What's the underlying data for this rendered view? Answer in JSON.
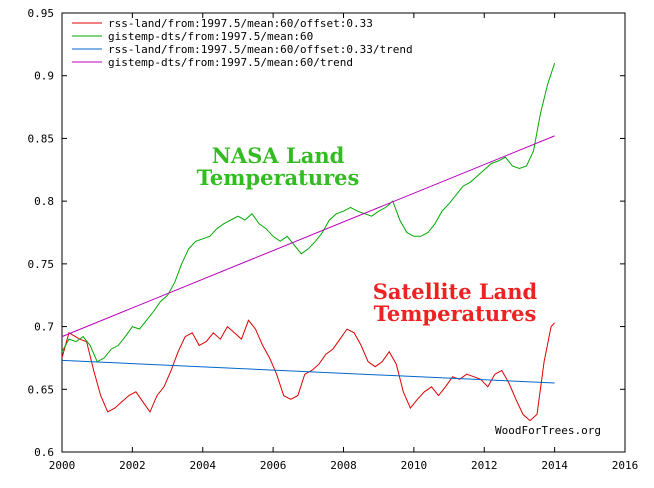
{
  "chart_data": {
    "type": "line",
    "title": "",
    "xlabel": "",
    "ylabel": "",
    "xlim": [
      2000,
      2016
    ],
    "ylim": [
      0.6,
      0.95
    ],
    "grid": false,
    "legend_position": "top-left",
    "x_ticks": [
      {
        "value": 2000,
        "label": "2000"
      },
      {
        "value": 2002,
        "label": "2002"
      },
      {
        "value": 2004,
        "label": "2004"
      },
      {
        "value": 2006,
        "label": "2006"
      },
      {
        "value": 2008,
        "label": "2008"
      },
      {
        "value": 2010,
        "label": "2010"
      },
      {
        "value": 2012,
        "label": "2012"
      },
      {
        "value": 2014,
        "label": "2014"
      },
      {
        "value": 2016,
        "label": "2016"
      }
    ],
    "y_ticks": [
      {
        "value": 0.6,
        "label": "0.6"
      },
      {
        "value": 0.65,
        "label": "0.65"
      },
      {
        "value": 0.7,
        "label": "0.7"
      },
      {
        "value": 0.75,
        "label": "0.75"
      },
      {
        "value": 0.8,
        "label": "0.8"
      },
      {
        "value": 0.85,
        "label": "0.85"
      },
      {
        "value": 0.9,
        "label": "0.9"
      },
      {
        "value": 0.95,
        "label": "0.95"
      }
    ],
    "series": [
      {
        "name": "rss-land/from:1997.5/mean:60/offset:0.33",
        "color": "#dd0000",
        "points": [
          [
            2000.0,
            0.675
          ],
          [
            2000.2,
            0.695
          ],
          [
            2000.5,
            0.69
          ],
          [
            2000.7,
            0.688
          ],
          [
            2000.9,
            0.665
          ],
          [
            2001.1,
            0.645
          ],
          [
            2001.3,
            0.632
          ],
          [
            2001.5,
            0.635
          ],
          [
            2001.7,
            0.64
          ],
          [
            2001.9,
            0.645
          ],
          [
            2002.1,
            0.648
          ],
          [
            2002.3,
            0.64
          ],
          [
            2002.5,
            0.632
          ],
          [
            2002.7,
            0.645
          ],
          [
            2002.9,
            0.652
          ],
          [
            2003.1,
            0.665
          ],
          [
            2003.3,
            0.68
          ],
          [
            2003.5,
            0.692
          ],
          [
            2003.7,
            0.695
          ],
          [
            2003.9,
            0.685
          ],
          [
            2004.1,
            0.688
          ],
          [
            2004.3,
            0.695
          ],
          [
            2004.5,
            0.69
          ],
          [
            2004.7,
            0.7
          ],
          [
            2004.9,
            0.695
          ],
          [
            2005.1,
            0.69
          ],
          [
            2005.3,
            0.705
          ],
          [
            2005.5,
            0.698
          ],
          [
            2005.7,
            0.685
          ],
          [
            2005.9,
            0.675
          ],
          [
            2006.1,
            0.662
          ],
          [
            2006.3,
            0.645
          ],
          [
            2006.5,
            0.642
          ],
          [
            2006.7,
            0.645
          ],
          [
            2006.9,
            0.662
          ],
          [
            2007.1,
            0.665
          ],
          [
            2007.3,
            0.67
          ],
          [
            2007.5,
            0.678
          ],
          [
            2007.7,
            0.682
          ],
          [
            2007.9,
            0.69
          ],
          [
            2008.1,
            0.698
          ],
          [
            2008.3,
            0.695
          ],
          [
            2008.5,
            0.685
          ],
          [
            2008.7,
            0.672
          ],
          [
            2008.9,
            0.668
          ],
          [
            2009.1,
            0.672
          ],
          [
            2009.3,
            0.68
          ],
          [
            2009.5,
            0.67
          ],
          [
            2009.7,
            0.648
          ],
          [
            2009.9,
            0.635
          ],
          [
            2010.1,
            0.642
          ],
          [
            2010.3,
            0.648
          ],
          [
            2010.5,
            0.652
          ],
          [
            2010.7,
            0.645
          ],
          [
            2010.9,
            0.652
          ],
          [
            2011.1,
            0.66
          ],
          [
            2011.3,
            0.658
          ],
          [
            2011.5,
            0.662
          ],
          [
            2011.7,
            0.66
          ],
          [
            2011.9,
            0.658
          ],
          [
            2012.1,
            0.652
          ],
          [
            2012.3,
            0.662
          ],
          [
            2012.5,
            0.665
          ],
          [
            2012.7,
            0.655
          ],
          [
            2012.9,
            0.642
          ],
          [
            2013.1,
            0.63
          ],
          [
            2013.3,
            0.625
          ],
          [
            2013.5,
            0.63
          ],
          [
            2013.7,
            0.672
          ],
          [
            2013.9,
            0.7
          ],
          [
            2014.0,
            0.703
          ]
        ]
      },
      {
        "name": "gistemp-dts/from:1997.5/mean:60",
        "color": "#00aa00",
        "points": [
          [
            2000.0,
            0.68
          ],
          [
            2000.2,
            0.69
          ],
          [
            2000.4,
            0.688
          ],
          [
            2000.6,
            0.692
          ],
          [
            2000.8,
            0.685
          ],
          [
            2001.0,
            0.672
          ],
          [
            2001.2,
            0.675
          ],
          [
            2001.4,
            0.682
          ],
          [
            2001.6,
            0.685
          ],
          [
            2001.8,
            0.692
          ],
          [
            2002.0,
            0.7
          ],
          [
            2002.2,
            0.698
          ],
          [
            2002.4,
            0.705
          ],
          [
            2002.6,
            0.712
          ],
          [
            2002.8,
            0.72
          ],
          [
            2003.0,
            0.725
          ],
          [
            2003.2,
            0.735
          ],
          [
            2003.4,
            0.75
          ],
          [
            2003.6,
            0.762
          ],
          [
            2003.8,
            0.768
          ],
          [
            2004.0,
            0.77
          ],
          [
            2004.2,
            0.772
          ],
          [
            2004.4,
            0.778
          ],
          [
            2004.6,
            0.782
          ],
          [
            2004.8,
            0.785
          ],
          [
            2005.0,
            0.788
          ],
          [
            2005.2,
            0.785
          ],
          [
            2005.4,
            0.79
          ],
          [
            2005.6,
            0.782
          ],
          [
            2005.8,
            0.778
          ],
          [
            2006.0,
            0.772
          ],
          [
            2006.2,
            0.768
          ],
          [
            2006.4,
            0.772
          ],
          [
            2006.6,
            0.765
          ],
          [
            2006.8,
            0.758
          ],
          [
            2007.0,
            0.762
          ],
          [
            2007.2,
            0.768
          ],
          [
            2007.4,
            0.775
          ],
          [
            2007.6,
            0.785
          ],
          [
            2007.8,
            0.79
          ],
          [
            2008.0,
            0.792
          ],
          [
            2008.2,
            0.795
          ],
          [
            2008.4,
            0.792
          ],
          [
            2008.6,
            0.79
          ],
          [
            2008.8,
            0.788
          ],
          [
            2009.0,
            0.792
          ],
          [
            2009.2,
            0.795
          ],
          [
            2009.4,
            0.8
          ],
          [
            2009.6,
            0.785
          ],
          [
            2009.8,
            0.775
          ],
          [
            2010.0,
            0.772
          ],
          [
            2010.2,
            0.772
          ],
          [
            2010.4,
            0.775
          ],
          [
            2010.6,
            0.782
          ],
          [
            2010.8,
            0.792
          ],
          [
            2011.0,
            0.798
          ],
          [
            2011.2,
            0.805
          ],
          [
            2011.4,
            0.812
          ],
          [
            2011.6,
            0.815
          ],
          [
            2011.8,
            0.82
          ],
          [
            2012.0,
            0.825
          ],
          [
            2012.2,
            0.83
          ],
          [
            2012.4,
            0.832
          ],
          [
            2012.6,
            0.835
          ],
          [
            2012.8,
            0.828
          ],
          [
            2013.0,
            0.826
          ],
          [
            2013.2,
            0.828
          ],
          [
            2013.4,
            0.84
          ],
          [
            2013.6,
            0.87
          ],
          [
            2013.8,
            0.893
          ],
          [
            2014.0,
            0.91
          ]
        ]
      },
      {
        "name": "rss-land/from:1997.5/mean:60/offset:0.33/trend",
        "color": "#0066cc",
        "points": [
          [
            2000.0,
            0.673
          ],
          [
            2014.0,
            0.655
          ]
        ]
      },
      {
        "name": "gistemp-dts/from:1997.5/mean:60/trend",
        "color": "#bb00bb",
        "points": [
          [
            2000.0,
            0.692
          ],
          [
            2014.0,
            0.852
          ]
        ]
      }
    ]
  },
  "annotations": {
    "nasa_line1": "NASA Land",
    "nasa_line2": "Temperatures",
    "nasa_color": "#33bb22",
    "sat_line1": "Satellite Land",
    "sat_line2": "Temperatures",
    "sat_color": "#ee2222",
    "credit": "WoodForTrees.org"
  }
}
